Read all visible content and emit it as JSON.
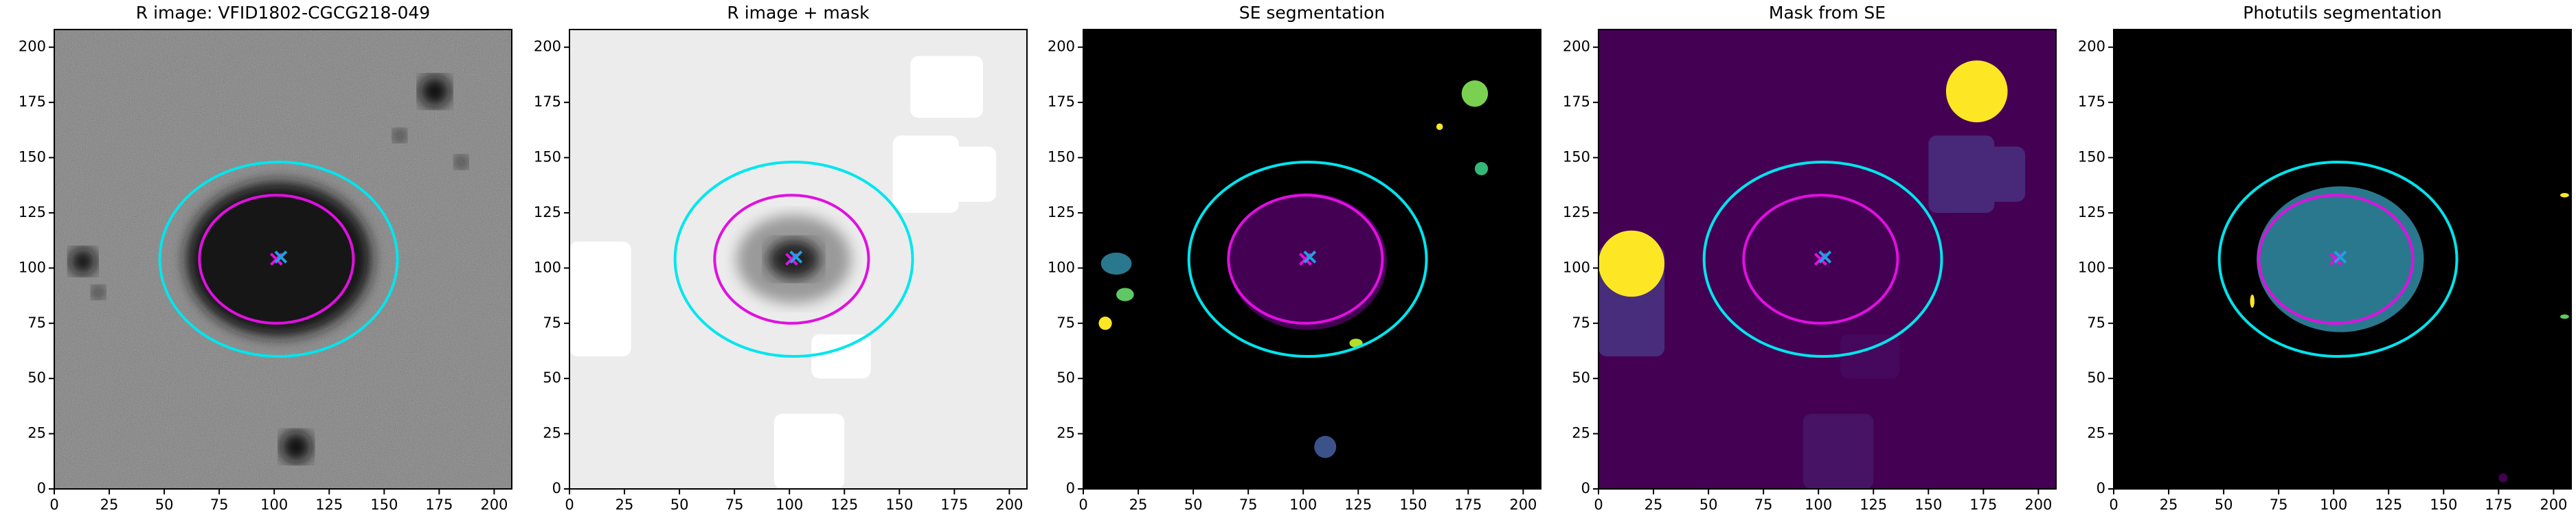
{
  "chart_data": [
    {
      "type": "image",
      "title": "R image: VFID1802-CGCG218-049",
      "background": "#7c7c7c",
      "noise": true,
      "xlim": [
        0,
        208
      ],
      "ylim": [
        0,
        208
      ],
      "xticks": [
        0,
        25,
        50,
        75,
        100,
        125,
        150,
        175,
        200
      ],
      "yticks": [
        0,
        25,
        50,
        75,
        100,
        125,
        150,
        175,
        200
      ],
      "features": [
        {
          "shape": "ellipse",
          "x": 102,
          "y": 104,
          "rx": 42,
          "ry": 35,
          "color": "#161616"
        },
        {
          "shape": "ellipse",
          "x": 173,
          "y": 180,
          "rx": 7,
          "ry": 7,
          "color": "#111111"
        },
        {
          "shape": "ellipse",
          "x": 13,
          "y": 103,
          "rx": 6,
          "ry": 6,
          "color": "#111111"
        },
        {
          "shape": "ellipse",
          "x": 110,
          "y": 19,
          "rx": 7,
          "ry": 7,
          "color": "#111111"
        },
        {
          "shape": "ellipse",
          "x": 20,
          "y": 89,
          "rx": 3,
          "ry": 3,
          "color": "#222222"
        },
        {
          "shape": "ellipse",
          "x": 157,
          "y": 160,
          "rx": 3,
          "ry": 3,
          "color": "#222222"
        },
        {
          "shape": "ellipse",
          "x": 185,
          "y": 148,
          "rx": 3,
          "ry": 3,
          "color": "#222222"
        }
      ],
      "ellipses": [
        {
          "x": 102,
          "y": 104,
          "rx": 54,
          "ry": 44,
          "color": "#00e5ee"
        },
        {
          "x": 101,
          "y": 104,
          "rx": 35,
          "ry": 29,
          "color": "#e010e0"
        }
      ],
      "markers": [
        {
          "x": 101,
          "y": 104,
          "color": "#e010e0"
        },
        {
          "x": 103,
          "y": 105,
          "color": "#20a0e0"
        }
      ]
    },
    {
      "type": "image",
      "title": "R image + mask",
      "background": "#ececec",
      "noise": false,
      "xlim": [
        0,
        208
      ],
      "ylim": [
        0,
        208
      ],
      "xticks": [
        0,
        25,
        50,
        75,
        100,
        125,
        150,
        175,
        200
      ],
      "yticks": [
        0,
        25,
        50,
        75,
        100,
        125,
        150,
        175,
        200
      ],
      "features": [
        {
          "shape": "ellipse",
          "x": 102,
          "y": 104,
          "rx": 26,
          "ry": 20,
          "color": "#9a9a9a"
        },
        {
          "shape": "ellipse",
          "x": 102,
          "y": 104,
          "rx": 12,
          "ry": 9,
          "color": "#202020"
        },
        {
          "shape": "rect",
          "x": 0,
          "y": 60,
          "w": 28,
          "h": 52,
          "color": "#ffffff"
        },
        {
          "shape": "rect",
          "x": 155,
          "y": 168,
          "w": 33,
          "h": 28,
          "color": "#ffffff"
        },
        {
          "shape": "rect",
          "x": 147,
          "y": 125,
          "w": 30,
          "h": 35,
          "color": "#ffffff"
        },
        {
          "shape": "rect",
          "x": 168,
          "y": 130,
          "w": 26,
          "h": 25,
          "color": "#ffffff"
        },
        {
          "shape": "rect",
          "x": 93,
          "y": 0,
          "w": 32,
          "h": 34,
          "color": "#ffffff"
        },
        {
          "shape": "rect",
          "x": 110,
          "y": 50,
          "w": 27,
          "h": 20,
          "color": "#ffffff"
        }
      ],
      "ellipses": [
        {
          "x": 102,
          "y": 104,
          "rx": 54,
          "ry": 44,
          "color": "#00e5ee"
        },
        {
          "x": 101,
          "y": 104,
          "rx": 35,
          "ry": 29,
          "color": "#e010e0"
        }
      ],
      "markers": [
        {
          "x": 101,
          "y": 104,
          "color": "#e010e0"
        },
        {
          "x": 103,
          "y": 105,
          "color": "#20a0e0"
        }
      ]
    },
    {
      "type": "image",
      "title": "SE segmentation",
      "background": "#000000",
      "noise": false,
      "xlim": [
        0,
        208
      ],
      "ylim": [
        0,
        208
      ],
      "xticks": [
        0,
        25,
        50,
        75,
        100,
        125,
        150,
        175,
        200
      ],
      "yticks": [
        0,
        25,
        50,
        75,
        100,
        125,
        150,
        175,
        200
      ],
      "features": [
        {
          "shape": "ellipse",
          "x": 102,
          "y": 103,
          "rx": 36,
          "ry": 31,
          "color": "#440154"
        },
        {
          "shape": "ellipse",
          "x": 178,
          "y": 179,
          "rx": 6,
          "ry": 6,
          "color": "#7ad151"
        },
        {
          "shape": "ellipse",
          "x": 15,
          "y": 102,
          "rx": 7,
          "ry": 5,
          "color": "#2a788e"
        },
        {
          "shape": "ellipse",
          "x": 110,
          "y": 19,
          "rx": 5,
          "ry": 5,
          "color": "#3b528b"
        },
        {
          "shape": "ellipse",
          "x": 124,
          "y": 66,
          "rx": 3,
          "ry": 2,
          "color": "#b5de2b"
        },
        {
          "shape": "ellipse",
          "x": 181,
          "y": 145,
          "rx": 3,
          "ry": 3,
          "color": "#35b779"
        },
        {
          "shape": "ellipse",
          "x": 19,
          "y": 88,
          "rx": 4,
          "ry": 3,
          "color": "#5ec962"
        },
        {
          "shape": "ellipse",
          "x": 10,
          "y": 75,
          "rx": 3,
          "ry": 3,
          "color": "#fde725"
        },
        {
          "shape": "ellipse",
          "x": 162,
          "y": 164,
          "rx": 1.5,
          "ry": 1.5,
          "color": "#fde725"
        }
      ],
      "ellipses": [
        {
          "x": 102,
          "y": 104,
          "rx": 54,
          "ry": 44,
          "color": "#00e5ee"
        },
        {
          "x": 101,
          "y": 104,
          "rx": 35,
          "ry": 29,
          "color": "#e010e0"
        }
      ],
      "markers": [
        {
          "x": 101,
          "y": 104,
          "color": "#e010e0"
        },
        {
          "x": 103,
          "y": 105,
          "color": "#20a0e0"
        }
      ]
    },
    {
      "type": "image",
      "title": "Mask from SE",
      "background": "#440154",
      "noise": false,
      "xlim": [
        0,
        208
      ],
      "ylim": [
        0,
        208
      ],
      "xticks": [
        0,
        25,
        50,
        75,
        100,
        125,
        150,
        175,
        200
      ],
      "yticks": [
        0,
        25,
        50,
        75,
        100,
        125,
        150,
        175,
        200
      ],
      "features": [
        {
          "shape": "rect",
          "x": 0,
          "y": 60,
          "w": 30,
          "h": 50,
          "color": "#472d7b"
        },
        {
          "shape": "rect",
          "x": 150,
          "y": 125,
          "w": 30,
          "h": 35,
          "color": "#482878"
        },
        {
          "shape": "rect",
          "x": 168,
          "y": 130,
          "w": 26,
          "h": 25,
          "color": "#482878"
        },
        {
          "shape": "rect",
          "x": 93,
          "y": 0,
          "w": 32,
          "h": 34,
          "color": "#471365"
        },
        {
          "shape": "rect",
          "x": 110,
          "y": 50,
          "w": 27,
          "h": 20,
          "color": "#46085c"
        },
        {
          "shape": "ellipse",
          "x": 15,
          "y": 102,
          "rx": 15,
          "ry": 15,
          "color": "#fde725"
        },
        {
          "shape": "ellipse",
          "x": 172,
          "y": 180,
          "rx": 14,
          "ry": 14,
          "color": "#fde725"
        }
      ],
      "ellipses": [
        {
          "x": 102,
          "y": 104,
          "rx": 54,
          "ry": 44,
          "color": "#00e5ee"
        },
        {
          "x": 101,
          "y": 104,
          "rx": 35,
          "ry": 29,
          "color": "#e010e0"
        }
      ],
      "markers": [
        {
          "x": 101,
          "y": 104,
          "color": "#e010e0"
        },
        {
          "x": 103,
          "y": 105,
          "color": "#20a0e0"
        }
      ]
    },
    {
      "type": "image",
      "title": "Photutils segmentation",
      "background": "#000000",
      "noise": false,
      "xlim": [
        0,
        208
      ],
      "ylim": [
        0,
        208
      ],
      "xticks": [
        0,
        25,
        50,
        75,
        100,
        125,
        150,
        175,
        200
      ],
      "yticks": [
        0,
        25,
        50,
        75,
        100,
        125,
        150,
        175,
        200
      ],
      "features": [
        {
          "shape": "ellipse",
          "x": 103,
          "y": 104,
          "rx": 38,
          "ry": 33,
          "color": "#2a788e"
        },
        {
          "shape": "ellipse",
          "x": 177,
          "y": 5,
          "rx": 2,
          "ry": 2,
          "color": "#440154"
        },
        {
          "shape": "ellipse",
          "x": 205,
          "y": 133,
          "rx": 2,
          "ry": 1,
          "color": "#fde725"
        },
        {
          "shape": "ellipse",
          "x": 205,
          "y": 78,
          "rx": 2,
          "ry": 1,
          "color": "#5ec962"
        },
        {
          "shape": "ellipse",
          "x": 63,
          "y": 85,
          "rx": 1,
          "ry": 3,
          "color": "#fde725"
        }
      ],
      "ellipses": [
        {
          "x": 102,
          "y": 104,
          "rx": 54,
          "ry": 44,
          "color": "#00e5ee"
        },
        {
          "x": 101,
          "y": 104,
          "rx": 35,
          "ry": 29,
          "color": "#e010e0"
        }
      ],
      "markers": [
        {
          "x": 101,
          "y": 104,
          "color": "#e010e0"
        },
        {
          "x": 103,
          "y": 105,
          "color": "#20a0e0"
        }
      ]
    }
  ]
}
